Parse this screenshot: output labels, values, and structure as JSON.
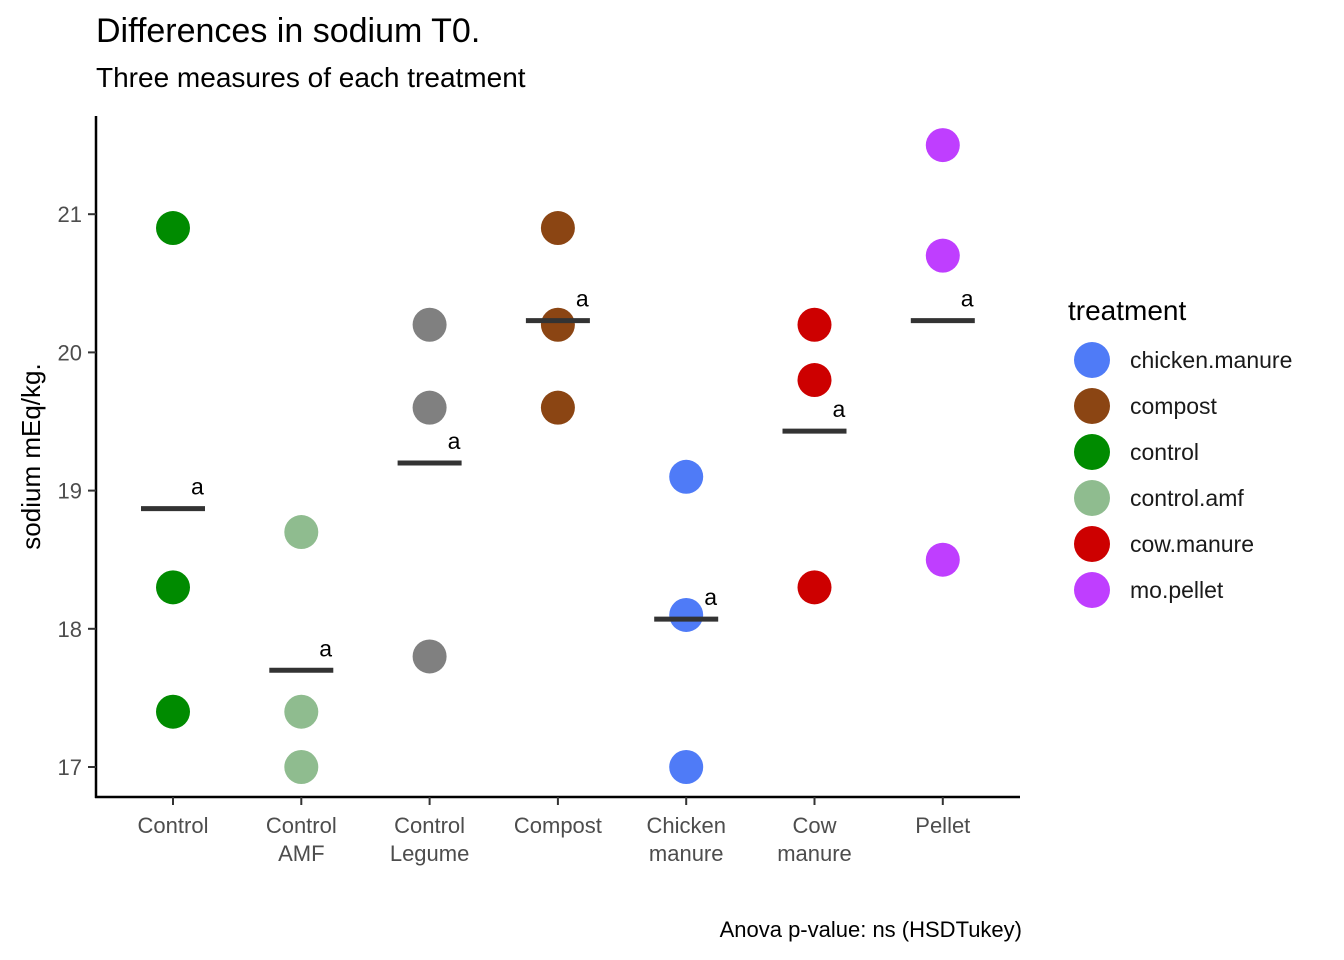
{
  "chart_data": {
    "type": "scatter",
    "title": "Differences in sodium T0.",
    "subtitle": "Three measures of each treatment",
    "caption": "Anova p-value: ns (HSDTukey)",
    "xlabel": "",
    "ylabel": "sodium mEq/kg.",
    "ylim": [
      16.8,
      21.7
    ],
    "yticks": [
      17,
      18,
      19,
      20,
      21
    ],
    "grid": false,
    "legend_position": "right",
    "legend_title": "treatment",
    "categories": [
      {
        "label": [
          "Control"
        ],
        "treatment": "control",
        "values": [
          20.9,
          18.3,
          17.4
        ],
        "mean": 18.87,
        "group": "a"
      },
      {
        "label": [
          "Control",
          "AMF"
        ],
        "treatment": "control.amf",
        "values": [
          18.7,
          17.4,
          17.0
        ],
        "mean": 17.7,
        "group": "a"
      },
      {
        "label": [
          "Control",
          "Legume"
        ],
        "treatment": "control.legume",
        "values": [
          20.2,
          19.6,
          17.8
        ],
        "mean": 19.2,
        "group": "a"
      },
      {
        "label": [
          "Compost"
        ],
        "treatment": "compost",
        "values": [
          20.9,
          20.2,
          19.6
        ],
        "mean": 20.23,
        "group": "a"
      },
      {
        "label": [
          "Chicken",
          "manure"
        ],
        "treatment": "chicken.manure",
        "values": [
          19.1,
          18.1,
          17.0
        ],
        "mean": 18.07,
        "group": "a"
      },
      {
        "label": [
          "Cow",
          "manure"
        ],
        "treatment": "cow.manure",
        "values": [
          20.2,
          19.8,
          18.3
        ],
        "mean": 19.43,
        "group": "a"
      },
      {
        "label": [
          "Pellet"
        ],
        "treatment": "mo.pellet",
        "values": [
          21.5,
          20.7,
          18.5
        ],
        "mean": 20.23,
        "group": "a"
      }
    ],
    "legend": [
      {
        "name": "chicken.manure",
        "color": "#4f7bf7"
      },
      {
        "name": "compost",
        "color": "#8b4513"
      },
      {
        "name": "control",
        "color": "#008b00"
      },
      {
        "name": "control.amf",
        "color": "#8fbc8f"
      },
      {
        "name": "cow.manure",
        "color": "#cd0000"
      },
      {
        "name": "mo.pellet",
        "color": "#bf3eff"
      }
    ],
    "colors": {
      "control": "#008b00",
      "control.amf": "#8fbc8f",
      "control.legume": "#808080",
      "compost": "#8b4513",
      "chicken.manure": "#4f7bf7",
      "cow.manure": "#cd0000",
      "mo.pellet": "#bf3eff",
      "mean_bar": "#333333"
    }
  }
}
